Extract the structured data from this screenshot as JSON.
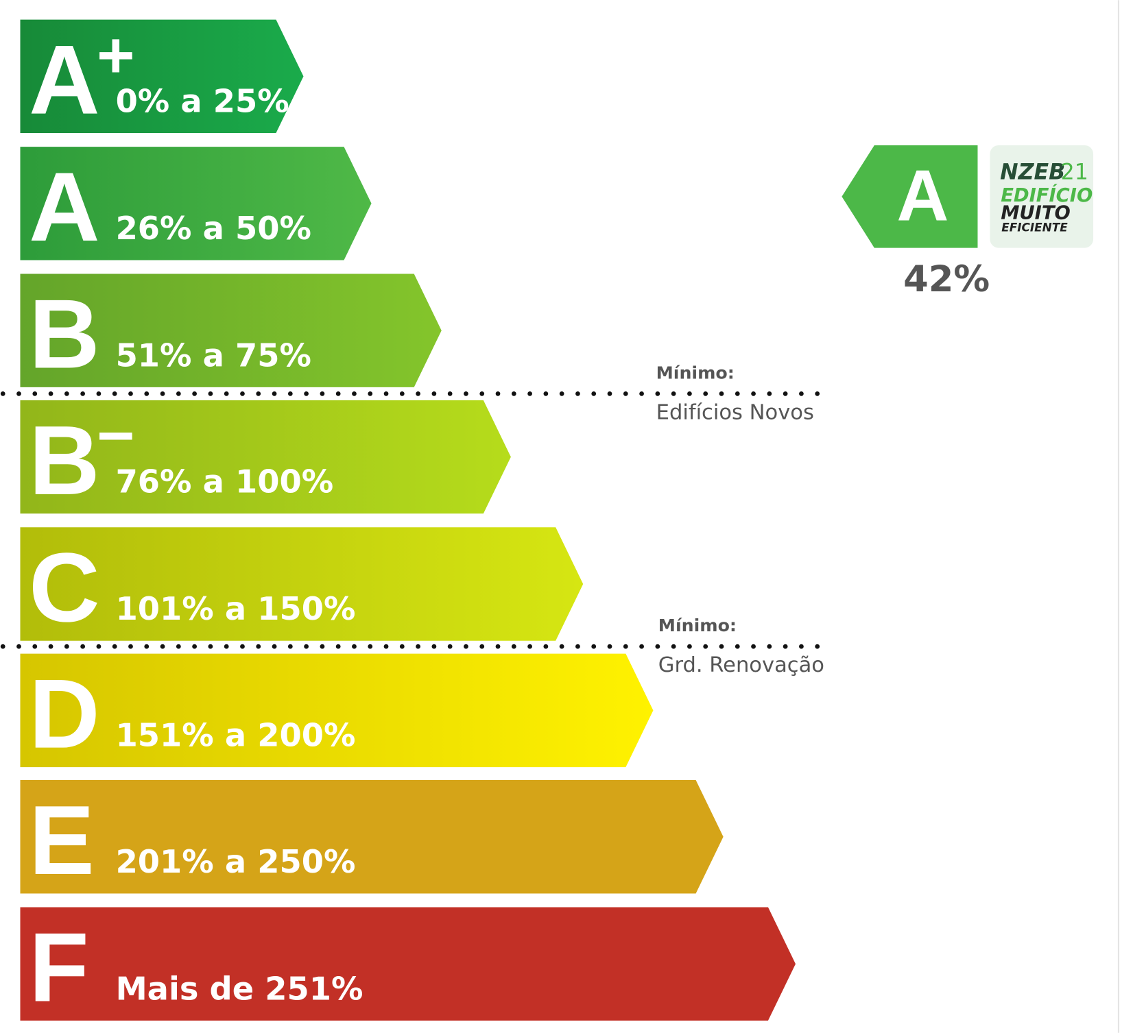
{
  "classes": [
    {
      "letter": "A",
      "sup": "+",
      "range": "0% a 25%"
    },
    {
      "letter": "A",
      "sup": null,
      "range": "26% a 50%"
    },
    {
      "letter": "B",
      "sup": null,
      "range": "51% a 75%"
    },
    {
      "letter": "B",
      "sup": "−",
      "range": "76% a 100%"
    },
    {
      "letter": "C",
      "sup": null,
      "range": "101% a 150%"
    },
    {
      "letter": "D",
      "sup": null,
      "range": "151% a 200%"
    },
    {
      "letter": "E",
      "sup": null,
      "range": "201% a 250%"
    },
    {
      "letter": "F",
      "sup": null,
      "range": "Mais de 251%"
    }
  ],
  "thresholds": [
    {
      "label": "Mínimo:",
      "name": "Edifícios Novos"
    },
    {
      "label": "Mínimo:",
      "name": "Grd. Renovação"
    }
  ],
  "rating": {
    "letter": "A",
    "value": "42%",
    "badge": {
      "nzeb": "NZEB",
      "year": "21",
      "line1": "EDIFÍCIO",
      "line2": "MUITO",
      "line3": "EFICIENTE"
    }
  }
}
